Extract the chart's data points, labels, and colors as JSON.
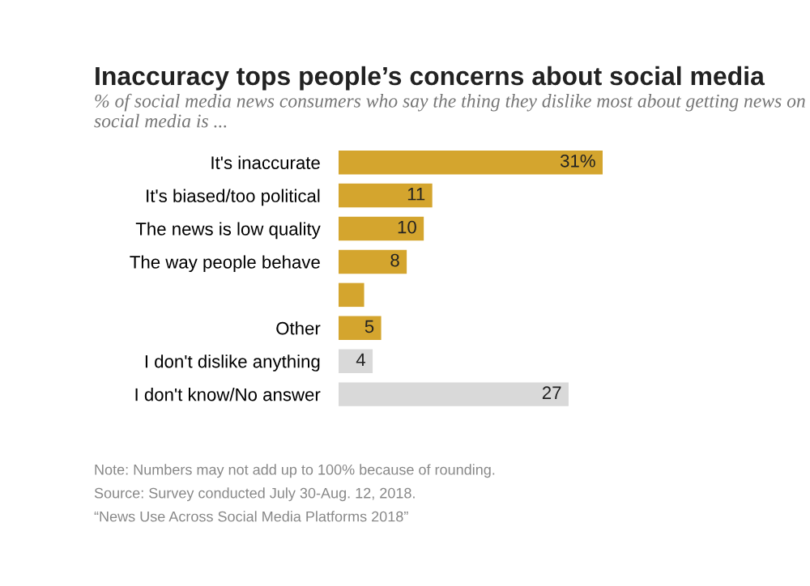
{
  "chart_data": {
    "type": "bar",
    "orientation": "horizontal",
    "title": "Inaccuracy tops people’s concerns about social media",
    "subtitle": "% of social media news consumers who say the thing they dislike most about getting news on social media is ...",
    "categories": [
      "It's inaccurate",
      "It's biased/too political",
      "The news is low quality",
      "The way people behave",
      null,
      "Other",
      "I don't dislike anything",
      "I don't know/No answer"
    ],
    "values": [
      31,
      11,
      10,
      8,
      3,
      5,
      4,
      27
    ],
    "colors": [
      "#d4a52e",
      "#d4a52e",
      "#d4a52e",
      "#d4a52e",
      "#d4a52e",
      "#d4a52e",
      "#d9d9d9",
      "#d9d9d9"
    ],
    "value_labels": [
      "31%",
      "11",
      "10",
      "8",
      null,
      "5",
      "4",
      "27"
    ],
    "annotations": [
      "Note: Numbers may not add up to 100% because of rounding.",
      "Source: Survey conducted July 30-Aug. 12, 2018.",
      "“News Use Across Social Media Platforms 2018”"
    ],
    "grid": false,
    "legend": false
  }
}
